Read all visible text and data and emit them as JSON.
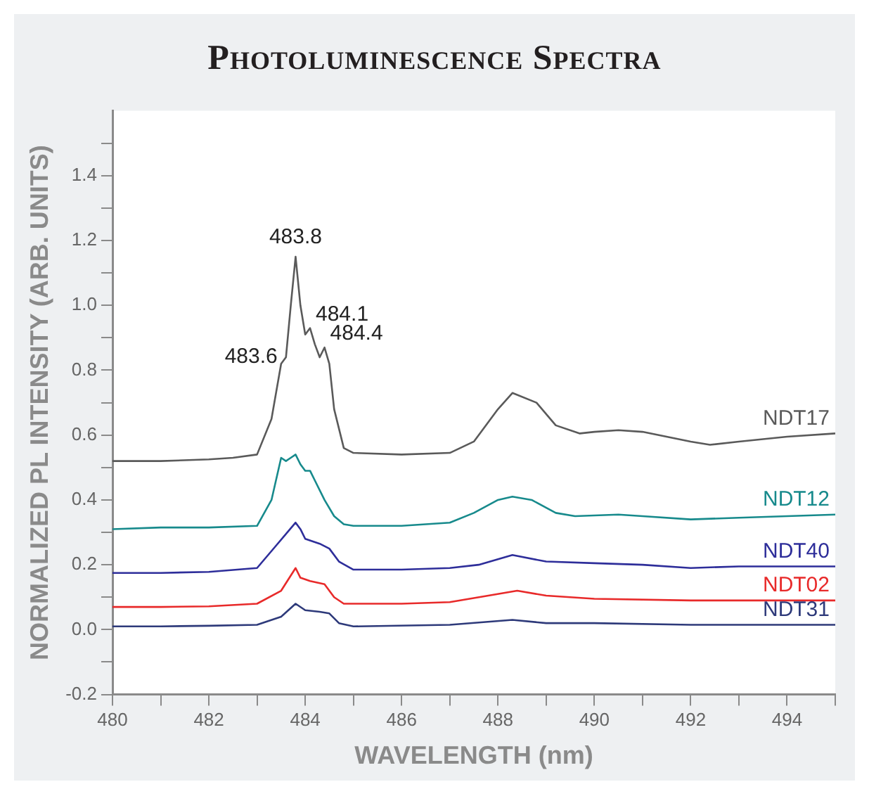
{
  "chart_data": {
    "type": "line",
    "title": "Photoluminescence Spectra",
    "xlabel": "WAVELENGTH (nm)",
    "ylabel": "NORMALIZED PL INTENSITY (ARB. UNITS)",
    "xlim": [
      480,
      495
    ],
    "xticks": [
      480,
      {
        "value": 481,
        "label": null
      },
      482,
      {
        "value": 483,
        "label": null
      },
      484,
      {
        "value": 485,
        "label": null
      },
      486,
      {
        "value": 487,
        "label": null
      },
      488,
      {
        "value": 489,
        "label": null
      },
      490,
      {
        "value": 491,
        "label": null
      },
      492,
      {
        "value": 493,
        "label": null
      },
      494,
      {
        "value": 495,
        "label": null
      }
    ],
    "ylim": [
      -0.2,
      1.6
    ],
    "yticks": [
      {
        "value": -0.2,
        "label": "-0.2"
      },
      {
        "value": -0.1,
        "label": null
      },
      {
        "value": 0,
        "label": "0.0"
      },
      {
        "value": 0.1,
        "label": null
      },
      {
        "value": 0.2,
        "label": "0.2"
      },
      {
        "value": 0.3,
        "label": null
      },
      {
        "value": 0.4,
        "label": "0.4"
      },
      {
        "value": 0.5,
        "label": null
      },
      {
        "value": 0.6,
        "label": "0.6"
      },
      {
        "value": 0.7,
        "label": null
      },
      {
        "value": 0.8,
        "label": "0.8"
      },
      {
        "value": 0.9,
        "label": null
      },
      {
        "value": 1,
        "label": "1.0"
      },
      {
        "value": 1.1,
        "label": null
      },
      {
        "value": 1.2,
        "label": "1.2"
      },
      {
        "value": 1.3,
        "label": null
      },
      {
        "value": 1.4,
        "label": "1.4"
      },
      {
        "value": 1.5,
        "label": null
      }
    ],
    "marker": "none",
    "line_style": "solid",
    "series": [
      {
        "name": "NDT17",
        "color": "#5a5a5a",
        "x": [
          480,
          481,
          482,
          482.5,
          483,
          483.3,
          483.5,
          483.6,
          483.7,
          483.8,
          483.9,
          484.0,
          484.1,
          484.2,
          484.3,
          484.4,
          484.5,
          484.6,
          484.8,
          485,
          486,
          487,
          487.5,
          488,
          488.3,
          488.8,
          489.2,
          489.7,
          490,
          490.5,
          491,
          491.5,
          492,
          492.4,
          493,
          494,
          495
        ],
        "values": [
          0.52,
          0.52,
          0.525,
          0.53,
          0.54,
          0.65,
          0.82,
          0.84,
          1.0,
          1.15,
          1.0,
          0.91,
          0.93,
          0.88,
          0.84,
          0.87,
          0.82,
          0.68,
          0.56,
          0.545,
          0.54,
          0.545,
          0.58,
          0.68,
          0.73,
          0.7,
          0.63,
          0.605,
          0.61,
          0.615,
          0.61,
          0.595,
          0.58,
          0.57,
          0.58,
          0.595,
          0.605
        ]
      },
      {
        "name": "NDT12",
        "color": "#178a8c",
        "x": [
          480,
          481,
          482,
          483,
          483.3,
          483.5,
          483.6,
          483.7,
          483.8,
          483.9,
          484.0,
          484.1,
          484.2,
          484.4,
          484.6,
          484.8,
          485,
          486,
          487,
          487.5,
          488,
          488.3,
          488.7,
          489.2,
          489.6,
          490.5,
          491,
          492,
          493,
          494,
          495
        ],
        "values": [
          0.31,
          0.315,
          0.315,
          0.32,
          0.4,
          0.53,
          0.52,
          0.53,
          0.54,
          0.51,
          0.49,
          0.49,
          0.46,
          0.4,
          0.35,
          0.325,
          0.32,
          0.32,
          0.33,
          0.36,
          0.4,
          0.41,
          0.4,
          0.36,
          0.35,
          0.355,
          0.35,
          0.34,
          0.345,
          0.35,
          0.355
        ]
      },
      {
        "name": "NDT40",
        "color": "#2e2e9a",
        "x": [
          480,
          481,
          482,
          483,
          483.4,
          483.8,
          483.9,
          484.0,
          484.3,
          484.5,
          484.7,
          485,
          486,
          487,
          487.6,
          488.3,
          489,
          490,
          491,
          492,
          493,
          495
        ],
        "values": [
          0.175,
          0.175,
          0.178,
          0.19,
          0.26,
          0.33,
          0.31,
          0.28,
          0.265,
          0.25,
          0.21,
          0.185,
          0.185,
          0.19,
          0.2,
          0.23,
          0.21,
          0.205,
          0.2,
          0.19,
          0.195,
          0.195
        ]
      },
      {
        "name": "NDT02",
        "color": "#e82a2a",
        "x": [
          480,
          481,
          482,
          483,
          483.5,
          483.8,
          483.9,
          484.1,
          484.4,
          484.6,
          484.8,
          486,
          487,
          487.8,
          488.4,
          489,
          490,
          492,
          495
        ],
        "values": [
          0.07,
          0.07,
          0.072,
          0.08,
          0.12,
          0.19,
          0.16,
          0.15,
          0.14,
          0.1,
          0.08,
          0.08,
          0.085,
          0.105,
          0.12,
          0.105,
          0.095,
          0.09,
          0.09
        ]
      },
      {
        "name": "NDT31",
        "color": "#2e3a7a",
        "x": [
          480,
          481,
          482,
          483,
          483.5,
          483.8,
          484.0,
          484.3,
          484.5,
          484.7,
          485,
          487,
          488.3,
          489,
          490,
          492,
          495
        ],
        "values": [
          0.01,
          0.01,
          0.012,
          0.015,
          0.04,
          0.08,
          0.06,
          0.055,
          0.05,
          0.02,
          0.01,
          0.015,
          0.03,
          0.02,
          0.02,
          0.015,
          0.015
        ]
      }
    ],
    "annotations": [
      {
        "text": "483.6",
        "x": 483.6,
        "y": 0.84
      },
      {
        "text": "483.8",
        "x": 483.8,
        "y": 1.15
      },
      {
        "text": "484.1",
        "x": 484.1,
        "y": 0.93
      },
      {
        "text": "484.4",
        "x": 484.4,
        "y": 0.87
      }
    ]
  }
}
